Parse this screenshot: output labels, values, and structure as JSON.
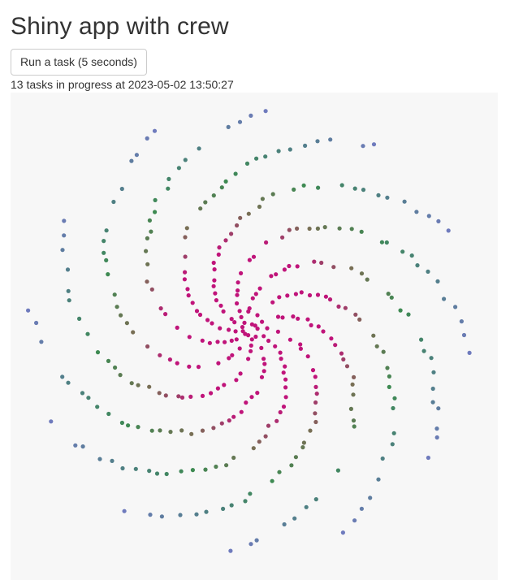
{
  "app": {
    "title": "Shiny app with crew",
    "run_button_label": "Run a task (5 seconds)",
    "status_text": "13 tasks in progress at 2023-05-02 13:50:27"
  },
  "colors": {
    "plot_background": "#f7f7f7",
    "center_color": "#c0147a",
    "mid_color": "#7a6e55",
    "green_color": "#3d8a52",
    "teal_color": "#4d8080",
    "outer_color": "#6f7bbd"
  },
  "chart_data": {
    "type": "scatter",
    "pattern": "spiral",
    "arms": 12,
    "points_per_arm": 36,
    "grid": false,
    "legend": "none"
  }
}
